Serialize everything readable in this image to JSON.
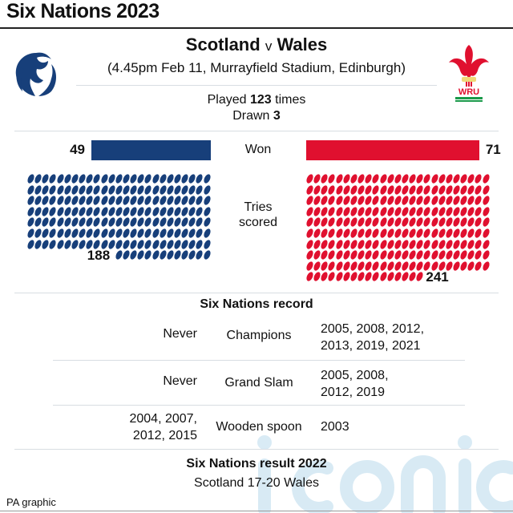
{
  "title": "Six Nations 2023",
  "match": {
    "home": "Scotland",
    "v": "v",
    "away": "Wales",
    "details": "(4.45pm Feb 11, Murrayfield Stadium, Edinburgh)"
  },
  "played": {
    "prefix": "Played ",
    "value": "123",
    "suffix": " times"
  },
  "drawn": {
    "prefix": "Drawn ",
    "value": "3"
  },
  "logos": {
    "home_icon": "scotland-thistle-icon",
    "away_icon": "wru-feathers-icon",
    "away_text": "WRU"
  },
  "colors": {
    "scotland": "#173f7a",
    "wales": "#e0102f",
    "watermark": "#cfe6f2"
  },
  "labels": {
    "won": "Won",
    "tries_line1": "Tries",
    "tries_line2": "scored"
  },
  "chart_data": {
    "type": "bar",
    "categories": [
      "Won",
      "Tries scored"
    ],
    "series": [
      {
        "name": "Scotland",
        "values": [
          49,
          188
        ]
      },
      {
        "name": "Wales",
        "values": [
          71,
          241
        ]
      }
    ],
    "tries_display": "pictogram",
    "tries_per_row": 25
  },
  "record": {
    "heading": "Six Nations record",
    "rows": [
      {
        "scotland": [
          "Never"
        ],
        "category": "Champions",
        "wales": [
          "2005, 2008, 2012,",
          "2013, 2019, 2021"
        ]
      },
      {
        "scotland": [
          "Never"
        ],
        "category": "Grand Slam",
        "wales": [
          "2005, 2008,",
          "2012, 2019"
        ]
      },
      {
        "scotland": [
          "2004, 2007,",
          "2012, 2015"
        ],
        "category": "Wooden spoon",
        "wales": [
          "2003"
        ]
      }
    ]
  },
  "result": {
    "heading": "Six Nations result 2022",
    "score": "Scotland 17-20 Wales"
  },
  "footer": "PA graphic",
  "watermark": "iconic"
}
